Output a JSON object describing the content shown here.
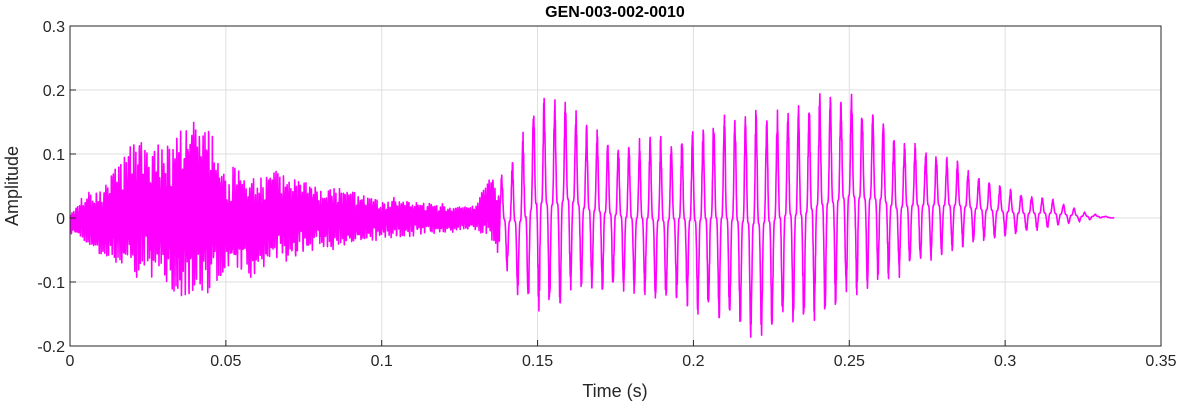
{
  "chart_data": {
    "type": "line",
    "title": "GEN-003-002-0010",
    "xlabel": "Time (s)",
    "ylabel": "Amplitude",
    "xlim": [
      0,
      0.35
    ],
    "ylim": [
      -0.2,
      0.3
    ],
    "grid": true,
    "x_ticks": [
      0,
      0.05,
      0.1,
      0.15,
      0.2,
      0.25,
      0.3,
      0.35
    ],
    "x_tick_labels": [
      "0",
      "0.05",
      "0.1",
      "0.15",
      "0.2",
      "0.25",
      "0.3",
      "0.35"
    ],
    "y_ticks": [
      -0.2,
      -0.1,
      0,
      0.1,
      0.2,
      0.3
    ],
    "y_tick_labels": [
      "-0.2",
      "-0.1",
      "0",
      "0.1",
      "0.2",
      "0.3"
    ],
    "series": [
      {
        "color": "#ff00ff",
        "sample_step": 0.005,
        "envelope_upper": [
          0.01,
          0.04,
          0.05,
          0.08,
          0.13,
          0.13,
          0.11,
          0.15,
          0.16,
          0.15,
          0.09,
          0.08,
          0.06,
          0.08,
          0.07,
          0.06,
          0.05,
          0.05,
          0.045,
          0.04,
          0.03,
          0.035,
          0.03,
          0.025,
          0.025,
          0.02,
          0.02,
          0.07,
          0.07,
          0.13,
          0.2,
          0.19,
          0.19,
          0.15,
          0.14,
          0.12,
          0.12,
          0.13,
          0.13,
          0.13,
          0.14,
          0.16,
          0.17,
          0.17,
          0.18,
          0.17,
          0.18,
          0.18,
          0.2,
          0.2,
          0.2,
          0.18,
          0.16,
          0.13,
          0.12,
          0.11,
          0.1,
          0.09,
          0.07,
          0.06,
          0.05,
          0.04,
          0.035,
          0.03,
          0.02,
          0.01,
          0.005,
          0.0
        ],
        "envelope_lower": [
          -0.03,
          -0.04,
          -0.06,
          -0.08,
          -0.1,
          -0.1,
          -0.11,
          -0.13,
          -0.12,
          -0.12,
          -0.1,
          -0.1,
          -0.09,
          -0.07,
          -0.07,
          -0.06,
          -0.05,
          -0.05,
          -0.045,
          -0.04,
          -0.035,
          -0.03,
          -0.03,
          -0.025,
          -0.025,
          -0.02,
          -0.02,
          -0.04,
          -0.08,
          -0.14,
          -0.15,
          -0.15,
          -0.13,
          -0.12,
          -0.12,
          -0.11,
          -0.12,
          -0.13,
          -0.14,
          -0.13,
          -0.15,
          -0.16,
          -0.17,
          -0.18,
          -0.2,
          -0.18,
          -0.17,
          -0.17,
          -0.16,
          -0.15,
          -0.13,
          -0.12,
          -0.1,
          -0.1,
          -0.08,
          -0.07,
          -0.06,
          -0.05,
          -0.04,
          -0.035,
          -0.03,
          -0.025,
          -0.02,
          -0.015,
          -0.01,
          -0.005,
          0.0,
          0.0
        ]
      }
    ]
  }
}
